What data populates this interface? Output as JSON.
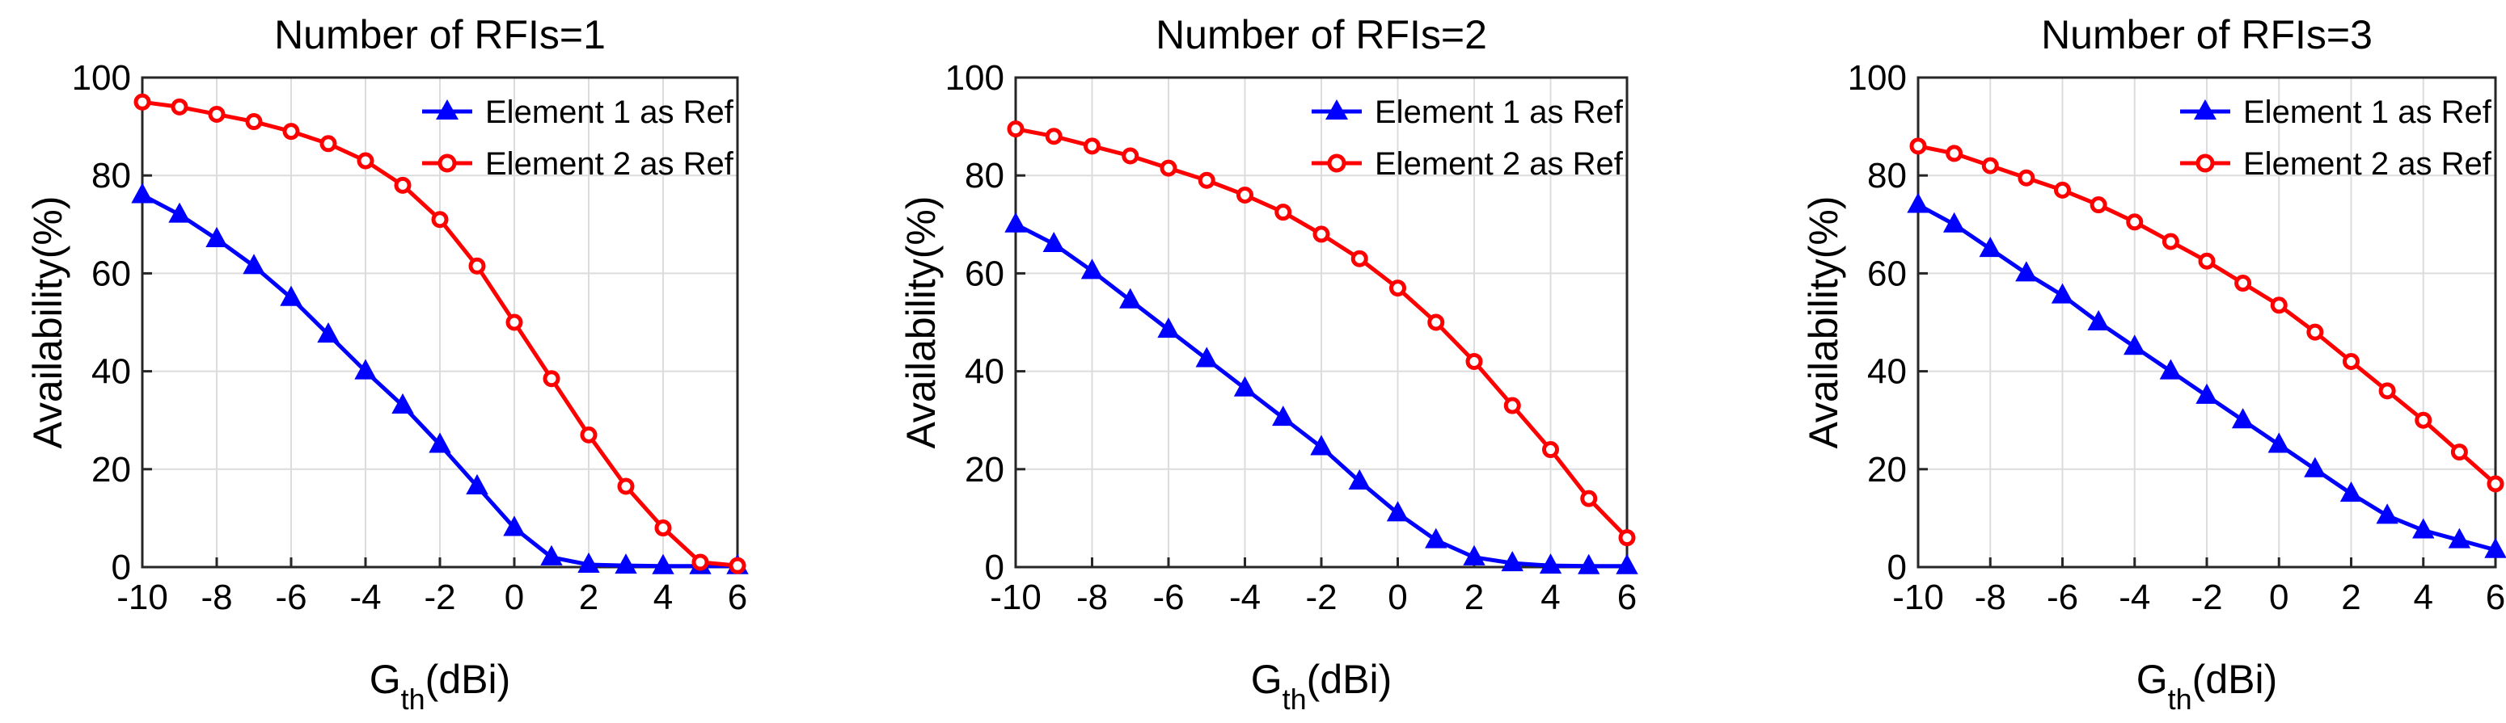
{
  "colors": {
    "series1": "#0000ff",
    "series2": "#ff0000",
    "grid": "#dcdcdc",
    "axis": "#262626"
  },
  "chart_data": [
    {
      "type": "line",
      "title": "Number of RFIs=1",
      "xlabel": {
        "main": "G",
        "sub": "th",
        "unit": "(dBi)"
      },
      "ylabel": "Availability(%)",
      "xlim": [
        -10,
        6
      ],
      "ylim": [
        0,
        100
      ],
      "xticks": [
        "-10",
        "-8",
        "-6",
        "-4",
        "-2",
        "0",
        "2",
        "4",
        "6"
      ],
      "yticks": [
        "0",
        "20",
        "40",
        "60",
        "80",
        "100"
      ],
      "grid": true,
      "legend_position": "top-right",
      "x": [
        -10,
        -9,
        -8,
        -7,
        -6,
        -5,
        -4,
        -3,
        -2,
        -1,
        0,
        1,
        2,
        3,
        4,
        5,
        6
      ],
      "series": [
        {
          "name": "Element 1 as Ref",
          "marker": "triangle",
          "color": "#0000ff",
          "values": [
            76,
            72,
            67,
            61.5,
            55,
            47.5,
            40,
            33,
            25,
            16.5,
            8,
            2,
            0.5,
            0.3,
            0.2,
            0.2,
            0.2
          ]
        },
        {
          "name": "Element 2 as Ref",
          "marker": "circle",
          "color": "#ff0000",
          "values": [
            95,
            94,
            92.5,
            91,
            89,
            86.5,
            83,
            78,
            71,
            61.5,
            50,
            38.5,
            27,
            16.5,
            8,
            1,
            0.3
          ]
        }
      ]
    },
    {
      "type": "line",
      "title": "Number of RFIs=2",
      "xlabel": {
        "main": "G",
        "sub": "th",
        "unit": "(dBi)"
      },
      "ylabel": "Availability(%)",
      "xlim": [
        -10,
        6
      ],
      "ylim": [
        0,
        100
      ],
      "xticks": [
        "-10",
        "-8",
        "-6",
        "-4",
        "-2",
        "0",
        "2",
        "4",
        "6"
      ],
      "yticks": [
        "0",
        "20",
        "40",
        "60",
        "80",
        "100"
      ],
      "grid": true,
      "legend_position": "top-right",
      "x": [
        -10,
        -9,
        -8,
        -7,
        -6,
        -5,
        -4,
        -3,
        -2,
        -1,
        0,
        1,
        2,
        3,
        4,
        5,
        6
      ],
      "series": [
        {
          "name": "Element 1 as Ref",
          "marker": "triangle",
          "color": "#0000ff",
          "values": [
            70,
            66,
            60.5,
            54.5,
            48.5,
            42.5,
            36.5,
            30.5,
            24.5,
            17.5,
            11,
            5.5,
            2,
            0.8,
            0.3,
            0.2,
            0.2
          ]
        },
        {
          "name": "Element 2 as Ref",
          "marker": "circle",
          "color": "#ff0000",
          "values": [
            89.5,
            88,
            86,
            84,
            81.5,
            79,
            76,
            72.5,
            68,
            63,
            57,
            50,
            42,
            33,
            24,
            14,
            6
          ]
        }
      ]
    },
    {
      "type": "line",
      "title": "Number of RFIs=3",
      "xlabel": {
        "main": "G",
        "sub": "th",
        "unit": "(dBi)"
      },
      "ylabel": "Availability(%)",
      "xlim": [
        -10,
        6
      ],
      "ylim": [
        0,
        100
      ],
      "xticks": [
        "-10",
        "-8",
        "-6",
        "-4",
        "-2",
        "0",
        "2",
        "4",
        "6"
      ],
      "yticks": [
        "0",
        "20",
        "40",
        "60",
        "80",
        "100"
      ],
      "grid": true,
      "legend_position": "top-right",
      "x": [
        -10,
        -9,
        -8,
        -7,
        -6,
        -5,
        -4,
        -3,
        -2,
        -1,
        0,
        1,
        2,
        3,
        4,
        5,
        6
      ],
      "series": [
        {
          "name": "Element 1 as Ref",
          "marker": "triangle",
          "color": "#0000ff",
          "values": [
            74,
            70,
            65,
            60,
            55.5,
            50,
            45,
            40,
            35,
            30,
            25,
            20,
            15,
            10.5,
            7.5,
            5.5,
            3.5
          ]
        },
        {
          "name": "Element 2 as Ref",
          "marker": "circle",
          "color": "#ff0000",
          "values": [
            86,
            84.5,
            82,
            79.5,
            77,
            74,
            70.5,
            66.5,
            62.5,
            58,
            53.5,
            48,
            42,
            36,
            30,
            23.5,
            17
          ]
        }
      ]
    }
  ]
}
